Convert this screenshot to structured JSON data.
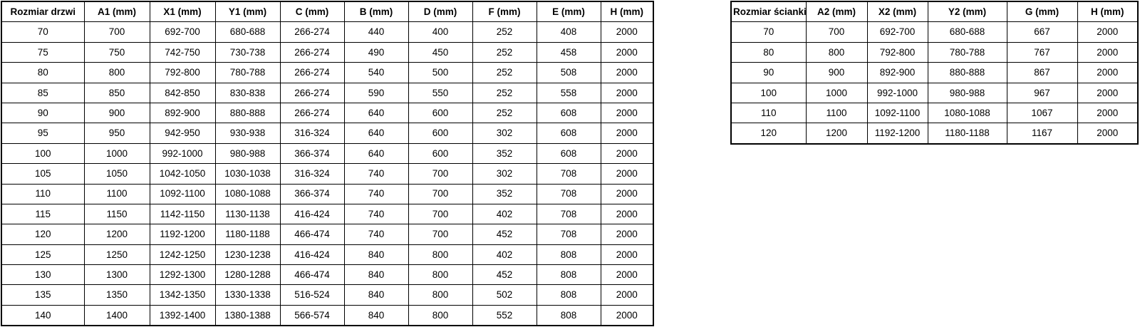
{
  "page": {
    "background": "#ffffff",
    "text_color": "#000000",
    "border_color": "#000000"
  },
  "door_table": {
    "headers": [
      "Rozmiar drzwi",
      "A1 (mm)",
      "X1 (mm)",
      "Y1 (mm)",
      "C (mm)",
      "B (mm)",
      "D (mm)",
      "F (mm)",
      "E (mm)",
      "H (mm)"
    ],
    "rows": [
      [
        "70",
        "700",
        "692-700",
        "680-688",
        "266-274",
        "440",
        "400",
        "252",
        "408",
        "2000"
      ],
      [
        "75",
        "750",
        "742-750",
        "730-738",
        "266-274",
        "490",
        "450",
        "252",
        "458",
        "2000"
      ],
      [
        "80",
        "800",
        "792-800",
        "780-788",
        "266-274",
        "540",
        "500",
        "252",
        "508",
        "2000"
      ],
      [
        "85",
        "850",
        "842-850",
        "830-838",
        "266-274",
        "590",
        "550",
        "252",
        "558",
        "2000"
      ],
      [
        "90",
        "900",
        "892-900",
        "880-888",
        "266-274",
        "640",
        "600",
        "252",
        "608",
        "2000"
      ],
      [
        "95",
        "950",
        "942-950",
        "930-938",
        "316-324",
        "640",
        "600",
        "302",
        "608",
        "2000"
      ],
      [
        "100",
        "1000",
        "992-1000",
        "980-988",
        "366-374",
        "640",
        "600",
        "352",
        "608",
        "2000"
      ],
      [
        "105",
        "1050",
        "1042-1050",
        "1030-1038",
        "316-324",
        "740",
        "700",
        "302",
        "708",
        "2000"
      ],
      [
        "110",
        "1100",
        "1092-1100",
        "1080-1088",
        "366-374",
        "740",
        "700",
        "352",
        "708",
        "2000"
      ],
      [
        "115",
        "1150",
        "1142-1150",
        "1130-1138",
        "416-424",
        "740",
        "700",
        "402",
        "708",
        "2000"
      ],
      [
        "120",
        "1200",
        "1192-1200",
        "1180-1188",
        "466-474",
        "740",
        "700",
        "452",
        "708",
        "2000"
      ],
      [
        "125",
        "1250",
        "1242-1250",
        "1230-1238",
        "416-424",
        "840",
        "800",
        "402",
        "808",
        "2000"
      ],
      [
        "130",
        "1300",
        "1292-1300",
        "1280-1288",
        "466-474",
        "840",
        "800",
        "452",
        "808",
        "2000"
      ],
      [
        "135",
        "1350",
        "1342-1350",
        "1330-1338",
        "516-524",
        "840",
        "800",
        "502",
        "808",
        "2000"
      ],
      [
        "140",
        "1400",
        "1392-1400",
        "1380-1388",
        "566-574",
        "840",
        "800",
        "552",
        "808",
        "2000"
      ]
    ]
  },
  "wall_table": {
    "headers": [
      "Rozmiar ścianki",
      "A2 (mm)",
      "X2 (mm)",
      "Y2 (mm)",
      "G (mm)",
      "H (mm)"
    ],
    "rows": [
      [
        "70",
        "700",
        "692-700",
        "680-688",
        "667",
        "2000"
      ],
      [
        "80",
        "800",
        "792-800",
        "780-788",
        "767",
        "2000"
      ],
      [
        "90",
        "900",
        "892-900",
        "880-888",
        "867",
        "2000"
      ],
      [
        "100",
        "1000",
        "992-1000",
        "980-988",
        "967",
        "2000"
      ],
      [
        "110",
        "1100",
        "1092-1100",
        "1080-1088",
        "1067",
        "2000"
      ],
      [
        "120",
        "1200",
        "1192-1200",
        "1180-1188",
        "1167",
        "2000"
      ]
    ]
  }
}
